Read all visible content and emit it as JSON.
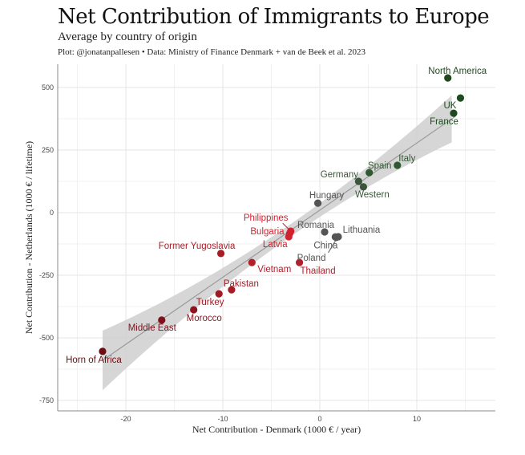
{
  "chart_data": {
    "type": "scatter",
    "title": "Net Contribution of Immigrants to Europe",
    "subtitle": "Average by country of origin",
    "caption": "Plot: @jonatanpallesen • Data: Ministry of Finance Denmark + van de Beek et al. 2023",
    "xlabel": "Net Contribution - Denmark (1000 € / year)",
    "ylabel": "Net Contribution - Netherlands (1000 € / lifetime)",
    "xlim": [
      -27,
      18
    ],
    "ylim": [
      -790,
      580
    ],
    "xticks": [
      -20,
      -10,
      0,
      10
    ],
    "yticks": [
      500,
      250,
      0,
      -250,
      -500,
      -750
    ],
    "grid": true,
    "trend": {
      "type": "linear fit with confidence band",
      "x_range": [
        -22.4,
        14.0
      ],
      "slope": 26.8,
      "intercept": 10
    },
    "points": [
      {
        "label": "North America",
        "x": 13.2,
        "y": 538,
        "color": "#1f4a1f"
      },
      {
        "label": "UK",
        "x": 14.5,
        "y": 458,
        "color": "#1f4a1f"
      },
      {
        "label": "France",
        "x": 13.8,
        "y": 397,
        "color": "#1f4a1f"
      },
      {
        "label": "Italy",
        "x": 8.0,
        "y": 189,
        "color": "#2f5a2f"
      },
      {
        "label": "Spain",
        "x": 5.1,
        "y": 160,
        "color": "#2f5a2f"
      },
      {
        "label": "Germany",
        "x": 4.0,
        "y": 125,
        "color": "#3a553a"
      },
      {
        "label": "Western",
        "x": 4.5,
        "y": 103,
        "color": "#3a553a"
      },
      {
        "label": "Hungary",
        "x": -0.2,
        "y": 38,
        "color": "#555555"
      },
      {
        "label": "Romania",
        "x": 0.5,
        "y": -77,
        "color": "#555555"
      },
      {
        "label": "Lithuania",
        "x": 1.9,
        "y": -96,
        "color": "#555555"
      },
      {
        "label": "China",
        "x": 1.6,
        "y": -97,
        "color": "#555555"
      },
      {
        "label": "Poland",
        "x": 1.7,
        "y": -99,
        "color": "#555555"
      },
      {
        "label": "Thailand",
        "x": -2.1,
        "y": -199,
        "color": "#b3202c"
      },
      {
        "label": "Philippines",
        "x": -3.0,
        "y": -74,
        "color": "#d0232f"
      },
      {
        "label": "Bulgaria",
        "x": -3.1,
        "y": -83,
        "color": "#d0232f"
      },
      {
        "label": "Latvia",
        "x": -3.2,
        "y": -96,
        "color": "#d0232f"
      },
      {
        "label": "Former Yugoslavia",
        "x": -10.2,
        "y": -163,
        "color": "#a81c26"
      },
      {
        "label": "Vietnam",
        "x": -7.0,
        "y": -199,
        "color": "#b3202c"
      },
      {
        "label": "Pakistan",
        "x": -9.1,
        "y": -308,
        "color": "#a81c26"
      },
      {
        "label": "Turkey",
        "x": -10.4,
        "y": -324,
        "color": "#a01a24"
      },
      {
        "label": "Morocco",
        "x": -13.0,
        "y": -388,
        "color": "#90141e"
      },
      {
        "label": "Middle East",
        "x": -16.3,
        "y": -429,
        "color": "#80101a"
      },
      {
        "label": "Horn of Africa",
        "x": -22.4,
        "y": -554,
        "color": "#6e0c14"
      }
    ]
  }
}
